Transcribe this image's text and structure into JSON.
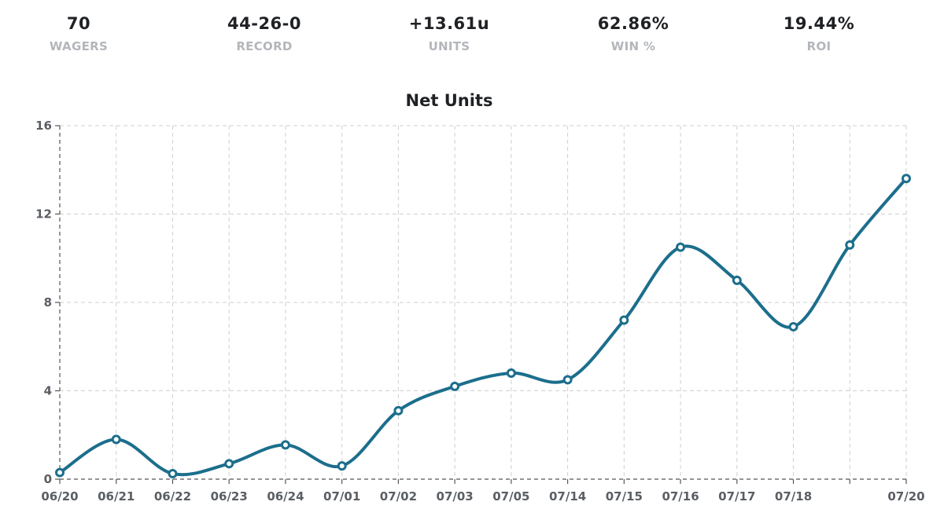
{
  "stats": [
    {
      "value": "70",
      "label": "WAGERS"
    },
    {
      "value": "44-26-0",
      "label": "RECORD"
    },
    {
      "value": "+13.61u",
      "label": "UNITS"
    },
    {
      "value": "62.86%",
      "label": "WIN %"
    },
    {
      "value": "19.44%",
      "label": "ROI"
    }
  ],
  "chart_data": {
    "type": "line",
    "title": "Net Units",
    "xlabel": "",
    "ylabel": "",
    "x": [
      "06/20",
      "06/21",
      "06/22",
      "06/23",
      "06/24",
      "07/01",
      "07/02",
      "07/03",
      "07/05",
      "07/14",
      "07/15",
      "07/16",
      "07/17",
      "07/18",
      "",
      "07/20"
    ],
    "series": [
      {
        "values": [
          0.3,
          1.8,
          0.25,
          0.7,
          1.55,
          0.6,
          3.1,
          4.2,
          4.8,
          4.5,
          7.2,
          10.5,
          9.0,
          6.9,
          10.6,
          13.61
        ]
      }
    ],
    "ylim": [
      0,
      16
    ],
    "yticks": [
      0,
      4,
      8,
      12,
      16
    ],
    "grid": true,
    "colors": {
      "series": "#1c6e8c"
    }
  }
}
